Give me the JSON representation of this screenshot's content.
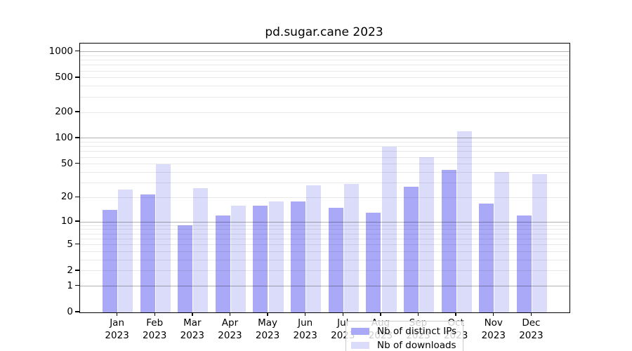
{
  "chart_data": {
    "type": "bar",
    "title": "pd.sugar.cane 2023",
    "categories": [
      "Jan",
      "Feb",
      "Mar",
      "Apr",
      "May",
      "Jun",
      "Jul",
      "Aug",
      "Sep",
      "Oct",
      "Nov",
      "Dec"
    ],
    "year_label": "2023",
    "series": [
      {
        "name": "Nb of distinct IPs",
        "color": "#a9a9f7",
        "values": [
          14,
          22,
          9,
          12,
          16,
          18,
          15,
          13,
          27,
          43,
          17,
          12
        ]
      },
      {
        "name": "Nb of downloads",
        "color": "#dbdbfa",
        "values": [
          25,
          50,
          26,
          16,
          18,
          28,
          29,
          80,
          60,
          120,
          40,
          38
        ]
      }
    ],
    "y_ticks": [
      0,
      1,
      2,
      5,
      10,
      20,
      50,
      100,
      200,
      500,
      1000
    ],
    "y_scale": "log1p",
    "ylim": [
      0,
      1240
    ],
    "grid": true,
    "legend_position": "lower-center",
    "colors": {
      "major_grid": "#b2b2b2",
      "minor_grid": "#e9e9e9",
      "axis": "#000000",
      "background": "#ffffff"
    }
  }
}
